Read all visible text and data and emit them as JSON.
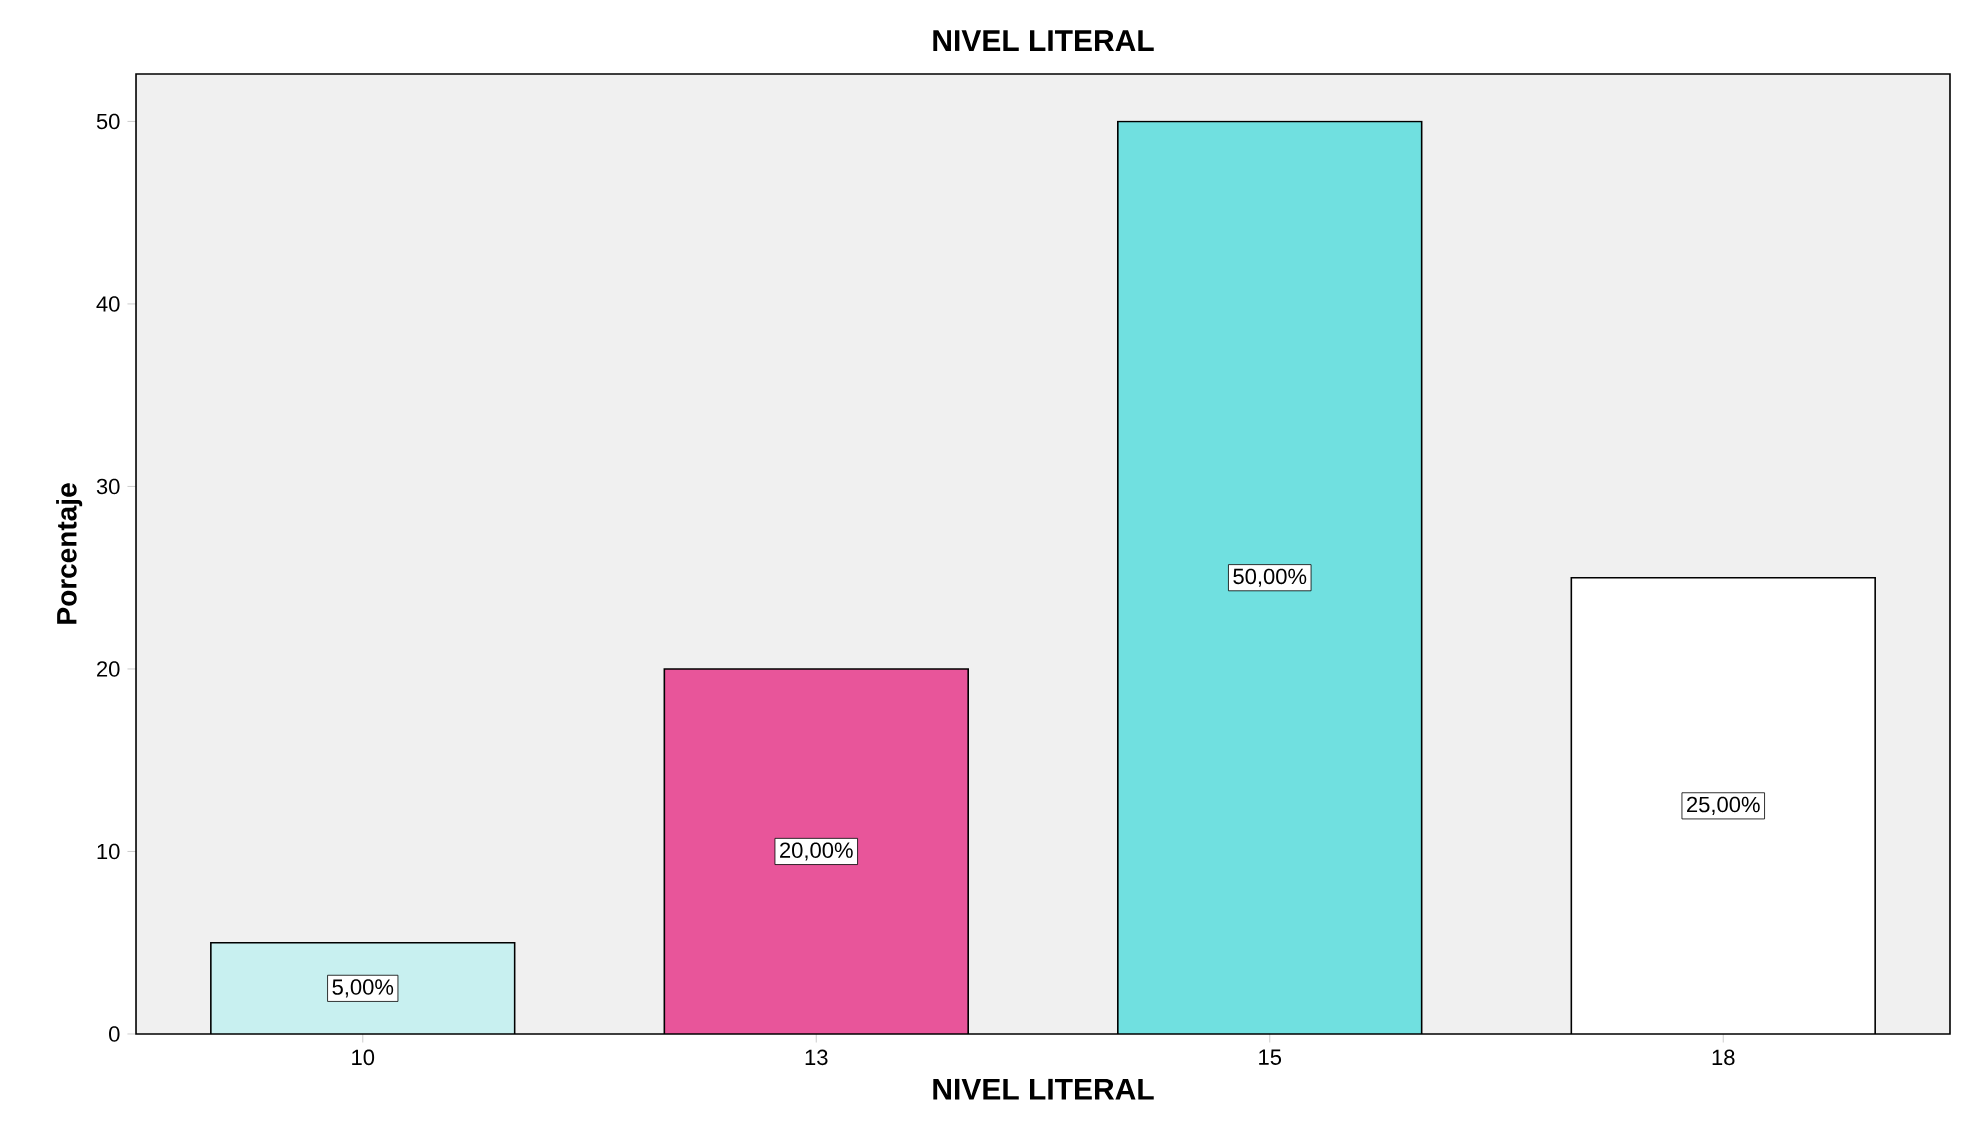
{
  "chart_data": {
    "type": "bar",
    "title": "NIVEL LITERAL",
    "xlabel": "NIVEL LITERAL",
    "ylabel": "Porcentaje",
    "categories": [
      "10",
      "13",
      "15",
      "18"
    ],
    "values": [
      5,
      20,
      50,
      25
    ],
    "colors": [
      "#c8f0f0",
      "#e8559a",
      "#70e0e0",
      "#ffffff"
    ],
    "value_labels": [
      "5,00%",
      "20,00%",
      "50,00%",
      "25,00%"
    ],
    "ylim": [
      0,
      52.6
    ],
    "yticks": [
      0,
      10,
      20,
      30,
      40,
      50
    ],
    "grid": false
  }
}
